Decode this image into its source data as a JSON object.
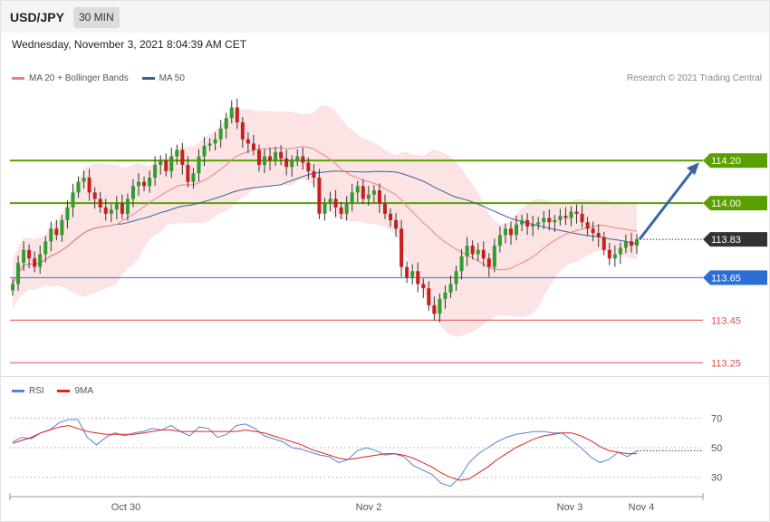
{
  "header": {
    "symbol": "USD/JPY",
    "timeframe": "30 MIN"
  },
  "timestamp": "Wednesday, November 3, 2021 8:04:39 AM CET",
  "legend": {
    "ma20_label": "MA 20 + Bollinger Bands",
    "ma50_label": "MA 50",
    "ma20_color": "#f08080",
    "ma50_color": "#3a5fa0",
    "credit": "Research © 2021 Trading Central"
  },
  "rsi_legend": {
    "rsi_label": "RSI",
    "ma9_label": "9MA",
    "rsi_color": "#5b7fd6",
    "ma9_color": "#e02020"
  },
  "chart_data": [
    {
      "type": "candlestick",
      "title": "USD/JPY",
      "ylim": [
        113.2,
        114.55
      ],
      "x_ticks": [
        "Oct 30",
        "Nov 2",
        "Nov 3",
        "Nov 4"
      ],
      "levels": [
        {
          "label": "114.20",
          "value": 114.2,
          "color": "#5aa000",
          "style": "resistance"
        },
        {
          "label": "114.00",
          "value": 114.0,
          "color": "#5aa000",
          "style": "resistance"
        },
        {
          "label": "113.83",
          "value": 113.83,
          "color": "#333333",
          "style": "last"
        },
        {
          "label": "113.65",
          "value": 113.65,
          "color": "#2a6fd6",
          "style": "support"
        },
        {
          "label": "113.45",
          "value": 113.45,
          "color": "#e05050",
          "style": "support-text"
        },
        {
          "label": "113.25",
          "value": 113.25,
          "color": "#e05050",
          "style": "support-text"
        }
      ],
      "closes": [
        113.62,
        113.72,
        113.78,
        113.74,
        113.7,
        113.76,
        113.82,
        113.88,
        113.85,
        113.92,
        113.98,
        114.05,
        114.1,
        114.12,
        114.05,
        114.02,
        113.98,
        113.95,
        113.97,
        114.0,
        113.95,
        114.02,
        114.08,
        114.1,
        114.08,
        114.12,
        114.18,
        114.2,
        114.15,
        114.22,
        114.25,
        114.18,
        114.1,
        114.14,
        114.22,
        114.27,
        114.28,
        114.3,
        114.35,
        114.4,
        114.45,
        114.38,
        114.3,
        114.28,
        114.25,
        114.18,
        114.22,
        114.2,
        114.24,
        114.21,
        114.17,
        114.2,
        114.22,
        114.19,
        114.15,
        114.12,
        113.95,
        114.0,
        114.02,
        113.98,
        113.95,
        114.0,
        114.05,
        114.08,
        114.02,
        114.04,
        114.06,
        114.0,
        113.95,
        113.92,
        113.88,
        113.7,
        113.65,
        113.68,
        113.62,
        113.6,
        113.52,
        113.48,
        113.55,
        113.58,
        113.62,
        113.68,
        113.75,
        113.8,
        113.76,
        113.78,
        113.74,
        113.7,
        113.8,
        113.85,
        113.88,
        113.85,
        113.9,
        113.92,
        113.89,
        113.9,
        113.91,
        113.93,
        113.91,
        113.92,
        113.94,
        113.93,
        113.96,
        113.95,
        113.91,
        113.88,
        113.86,
        113.84,
        113.78,
        113.74,
        113.76,
        113.79,
        113.82,
        113.8,
        113.83
      ],
      "series": [
        {
          "name": "MA 20 + Bollinger Bands"
        },
        {
          "name": "MA 50"
        }
      ]
    },
    {
      "type": "line",
      "title": "RSI",
      "ylim": [
        17,
        80
      ],
      "y_ticks": [
        30,
        50,
        70
      ],
      "series": [
        {
          "name": "RSI",
          "values": [
            54,
            57,
            56,
            60,
            62,
            67,
            69,
            69,
            57,
            52,
            57,
            60,
            58,
            60,
            61,
            63,
            62,
            65,
            61,
            58,
            64,
            63,
            57,
            59,
            65,
            66,
            63,
            58,
            56,
            54,
            50,
            49,
            47,
            45,
            44,
            40,
            42,
            48,
            50,
            48,
            45,
            46,
            44,
            38,
            35,
            32,
            26,
            24,
            30,
            40,
            46,
            50,
            54,
            57,
            59,
            60,
            61,
            61,
            60,
            60,
            55,
            50,
            44,
            40,
            42,
            47,
            44,
            48
          ]
        },
        {
          "name": "9MA",
          "values": [
            53,
            55,
            57,
            60,
            62,
            64,
            65,
            63,
            61,
            60,
            59,
            59,
            59,
            59,
            60,
            61,
            62,
            62,
            61,
            61,
            61,
            61,
            61,
            61,
            61,
            62,
            61,
            60,
            58,
            56,
            54,
            52,
            49,
            47,
            45,
            43,
            42,
            43,
            44,
            45,
            46,
            46,
            45,
            43,
            40,
            37,
            33,
            30,
            28,
            29,
            33,
            37,
            42,
            46,
            50,
            53,
            56,
            58,
            59,
            60,
            60,
            58,
            55,
            51,
            48,
            47,
            46,
            46
          ]
        }
      ]
    }
  ]
}
